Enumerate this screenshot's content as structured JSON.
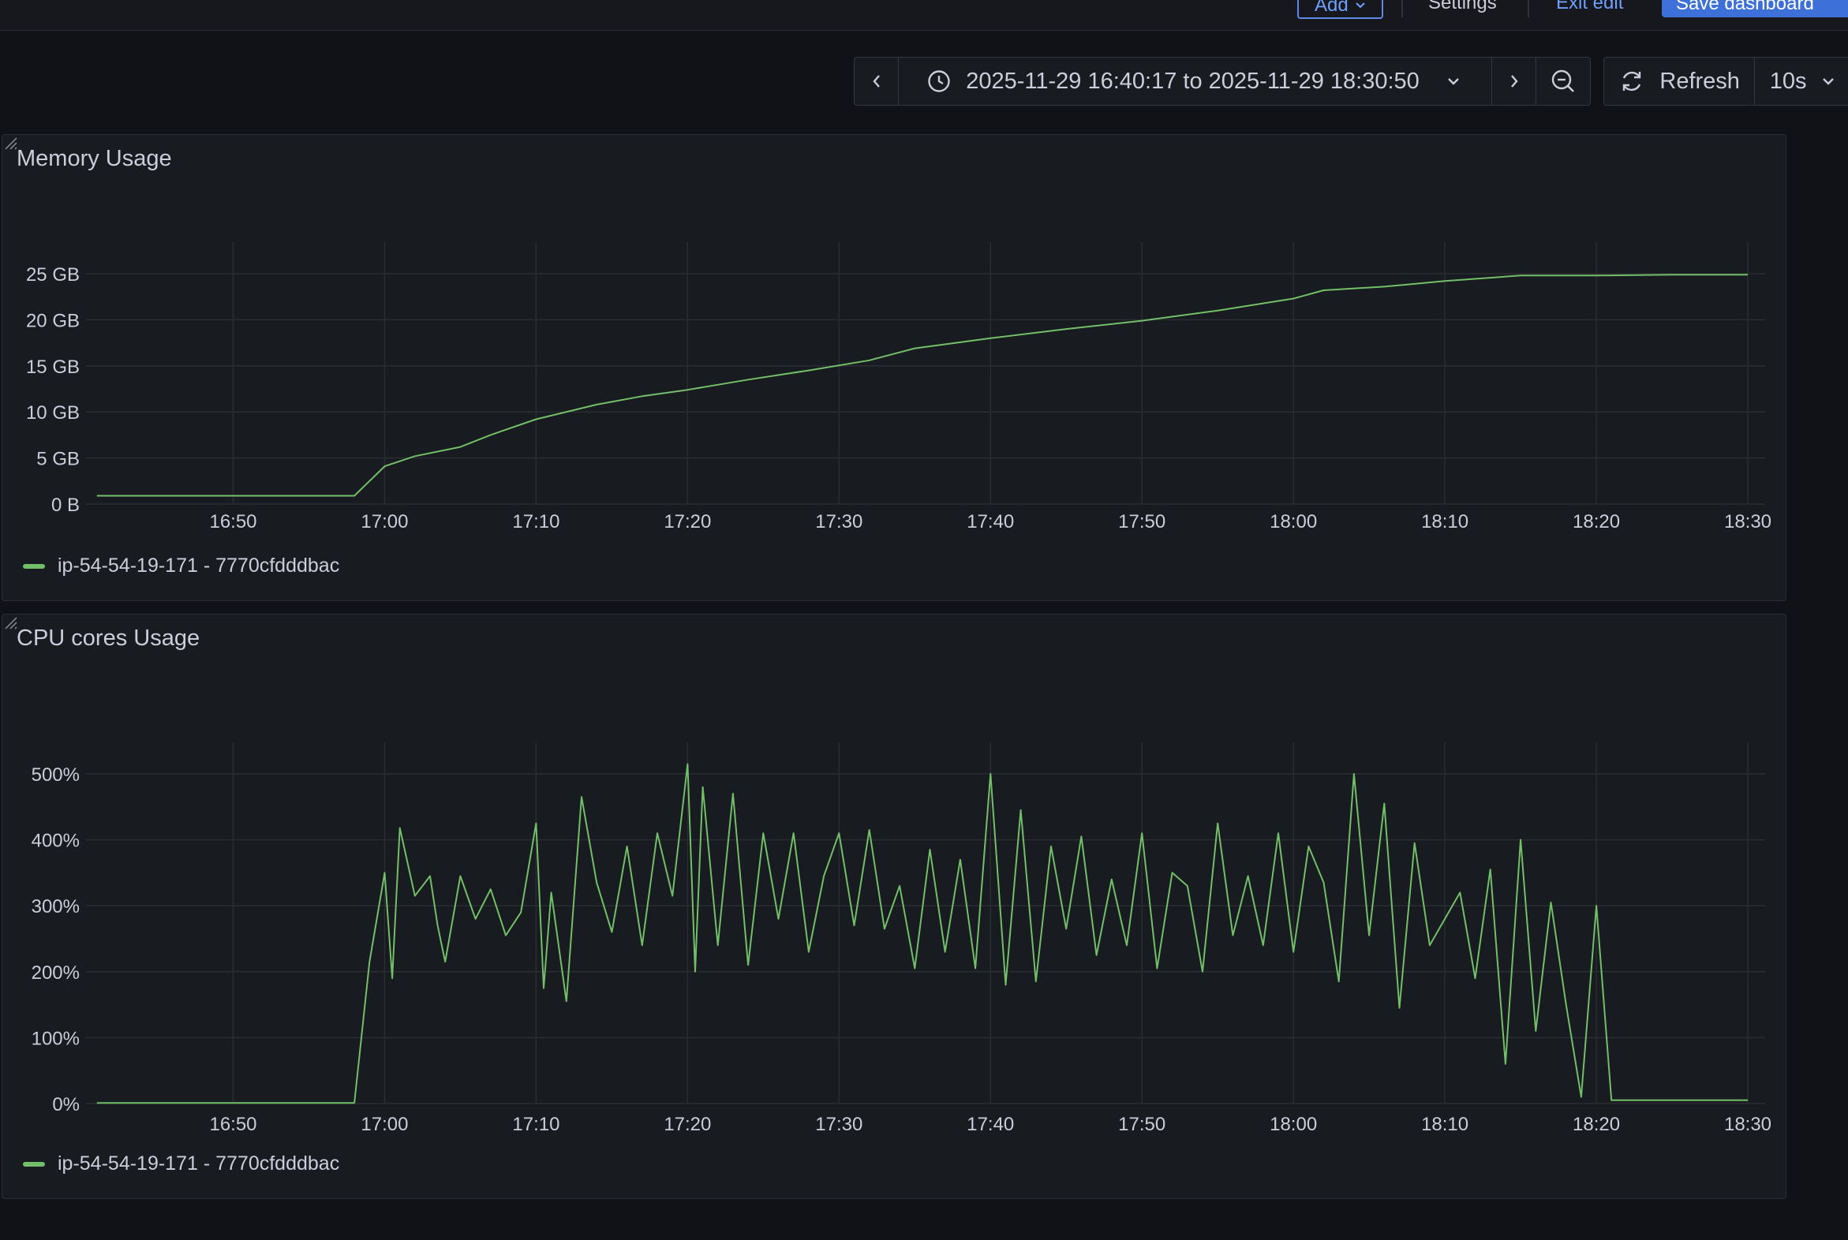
{
  "toolbar": {
    "add_label": "Add",
    "settings_label": "Settings",
    "exit_label": "Exit edit",
    "save_label": "Save dashboard"
  },
  "time_picker": {
    "range": "2025-11-29 16:40:17 to 2025-11-29 18:30:50",
    "refresh_label": "Refresh",
    "interval": "10s"
  },
  "colors": {
    "series": "#73bf69",
    "accent": "#3d71d9",
    "background": "#111217",
    "panel": "#181b1f"
  },
  "panels": [
    {
      "title": "Memory Usage",
      "legend": "ip-54-54-19-171 - 7770cfdddbac"
    },
    {
      "title": "CPU cores Usage",
      "legend": "ip-54-54-19-171 - 7770cfdddbac"
    }
  ],
  "chart_data": [
    {
      "type": "line",
      "title": "Memory Usage",
      "x_ticks": [
        "16:50",
        "17:00",
        "17:10",
        "17:20",
        "17:30",
        "17:40",
        "17:50",
        "18:00",
        "18:10",
        "18:20",
        "18:30"
      ],
      "y_ticks": [
        "0 B",
        "5 GB",
        "10 GB",
        "15 GB",
        "20 GB",
        "25 GB"
      ],
      "xlim": [
        "16:40:17",
        "18:30:50"
      ],
      "ylim": [
        0,
        25
      ],
      "y_unit": "GB",
      "grid": true,
      "legend_position": "bottom-left",
      "series": [
        {
          "name": "ip-54-54-19-171 - 7770cfdddbac",
          "points": [
            [
              "16:41",
              0.9
            ],
            [
              "16:58",
              0.9
            ],
            [
              "16:59",
              2.5
            ],
            [
              "17:00",
              4.1
            ],
            [
              "17:02",
              5.2
            ],
            [
              "17:05",
              6.2
            ],
            [
              "17:07",
              7.5
            ],
            [
              "17:10",
              9.2
            ],
            [
              "17:14",
              10.8
            ],
            [
              "17:17",
              11.7
            ],
            [
              "17:20",
              12.4
            ],
            [
              "17:24",
              13.5
            ],
            [
              "17:28",
              14.5
            ],
            [
              "17:32",
              15.6
            ],
            [
              "17:35",
              16.9
            ],
            [
              "17:40",
              18.0
            ],
            [
              "17:45",
              19.0
            ],
            [
              "17:50",
              19.9
            ],
            [
              "17:55",
              21.0
            ],
            [
              "18:00",
              22.3
            ],
            [
              "18:02",
              23.2
            ],
            [
              "18:06",
              23.6
            ],
            [
              "18:10",
              24.2
            ],
            [
              "18:15",
              24.8
            ],
            [
              "18:20",
              24.8
            ],
            [
              "18:25",
              24.9
            ],
            [
              "18:30",
              24.9
            ]
          ]
        }
      ]
    },
    {
      "type": "line",
      "title": "CPU cores Usage",
      "x_ticks": [
        "16:50",
        "17:00",
        "17:10",
        "17:20",
        "17:30",
        "17:40",
        "17:50",
        "18:00",
        "18:10",
        "18:20",
        "18:30"
      ],
      "y_ticks": [
        "0%",
        "100%",
        "200%",
        "300%",
        "400%",
        "500%"
      ],
      "xlim": [
        "16:40:17",
        "18:30:50"
      ],
      "ylim": [
        0,
        500
      ],
      "y_unit": "%",
      "grid": true,
      "legend_position": "bottom-left",
      "series": [
        {
          "name": "ip-54-54-19-171 - 7770cfdddbac",
          "points": [
            [
              "16:41",
              1
            ],
            [
              "16:50",
              1
            ],
            [
              "16:58",
              1
            ],
            [
              "16:59",
              215
            ],
            [
              "17:00",
              350
            ],
            [
              "17:00:30",
              190
            ],
            [
              "17:01",
              418
            ],
            [
              "17:02",
              315
            ],
            [
              "17:03",
              345
            ],
            [
              "17:03:30",
              270
            ],
            [
              "17:04",
              215
            ],
            [
              "17:05",
              345
            ],
            [
              "17:06",
              280
            ],
            [
              "17:07",
              325
            ],
            [
              "17:08",
              255
            ],
            [
              "17:09",
              290
            ],
            [
              "17:10",
              425
            ],
            [
              "17:10:30",
              175
            ],
            [
              "17:11",
              320
            ],
            [
              "17:12",
              155
            ],
            [
              "17:13",
              465
            ],
            [
              "17:14",
              335
            ],
            [
              "17:15",
              260
            ],
            [
              "17:16",
              390
            ],
            [
              "17:17",
              240
            ],
            [
              "17:18",
              410
            ],
            [
              "17:19",
              315
            ],
            [
              "17:20",
              515
            ],
            [
              "17:20:30",
              200
            ],
            [
              "17:21",
              480
            ],
            [
              "17:22",
              240
            ],
            [
              "17:23",
              470
            ],
            [
              "17:24",
              210
            ],
            [
              "17:25",
              410
            ],
            [
              "17:26",
              280
            ],
            [
              "17:27",
              410
            ],
            [
              "17:28",
              230
            ],
            [
              "17:29",
              345
            ],
            [
              "17:30",
              410
            ],
            [
              "17:31",
              270
            ],
            [
              "17:32",
              415
            ],
            [
              "17:33",
              265
            ],
            [
              "17:34",
              330
            ],
            [
              "17:35",
              205
            ],
            [
              "17:36",
              385
            ],
            [
              "17:37",
              230
            ],
            [
              "17:38",
              370
            ],
            [
              "17:39",
              205
            ],
            [
              "17:40",
              500
            ],
            [
              "17:41",
              180
            ],
            [
              "17:42",
              445
            ],
            [
              "17:43",
              185
            ],
            [
              "17:44",
              390
            ],
            [
              "17:45",
              265
            ],
            [
              "17:46",
              405
            ],
            [
              "17:47",
              225
            ],
            [
              "17:48",
              340
            ],
            [
              "17:49",
              240
            ],
            [
              "17:50",
              410
            ],
            [
              "17:51",
              205
            ],
            [
              "17:52",
              350
            ],
            [
              "17:53",
              330
            ],
            [
              "17:54",
              200
            ],
            [
              "17:55",
              425
            ],
            [
              "17:56",
              255
            ],
            [
              "17:57",
              345
            ],
            [
              "17:58",
              240
            ],
            [
              "17:59",
              410
            ],
            [
              "18:00",
              230
            ],
            [
              "18:01",
              390
            ],
            [
              "18:02",
              335
            ],
            [
              "18:03",
              185
            ],
            [
              "18:04",
              500
            ],
            [
              "18:05",
              255
            ],
            [
              "18:06",
              455
            ],
            [
              "18:07",
              145
            ],
            [
              "18:08",
              395
            ],
            [
              "18:09",
              240
            ],
            [
              "18:10",
              280
            ],
            [
              "18:11",
              320
            ],
            [
              "18:12",
              190
            ],
            [
              "18:13",
              355
            ],
            [
              "18:14",
              60
            ],
            [
              "18:15",
              400
            ],
            [
              "18:16",
              110
            ],
            [
              "18:17",
              305
            ],
            [
              "18:18",
              150
            ],
            [
              "18:19",
              10
            ],
            [
              "18:20",
              300
            ],
            [
              "18:21",
              5
            ],
            [
              "18:25",
              5
            ],
            [
              "18:30",
              5
            ]
          ]
        }
      ]
    }
  ]
}
